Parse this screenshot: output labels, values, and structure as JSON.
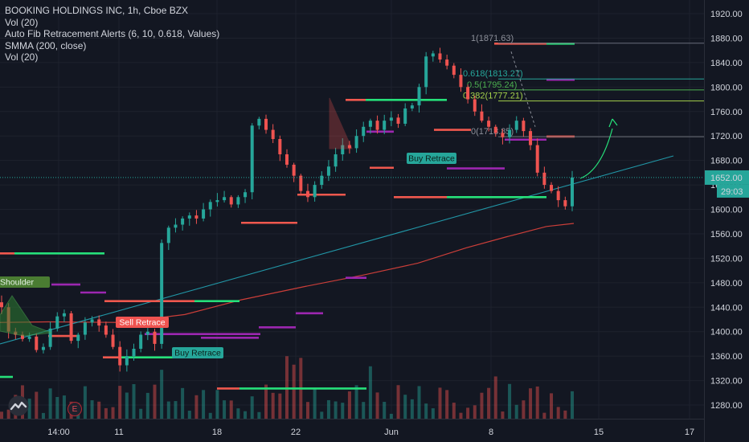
{
  "legend": {
    "title": "BOOKING HOLDINGS INC, 1h, Cboe BZX",
    "indicators": [
      "Vol (20)",
      "Auto Fib Retracement Alerts (6, 10, 0.618, Values)",
      "SMMA (200, close)",
      "Vol (20)"
    ]
  },
  "colors": {
    "background": "#131722",
    "up": "#26a69a",
    "down": "#ef5350",
    "green_line": "#26e07a",
    "red_line": "#f0584e",
    "purple_line": "#9c27b0",
    "trend": "#2196a6",
    "smma": "#e0433c"
  },
  "price_axis": {
    "ticks": [
      "1920.00",
      "1880.00",
      "1840.00",
      "1800.00",
      "1760.00",
      "1720.00",
      "1680.00",
      "1640.00",
      "1600.00",
      "1560.00",
      "1520.00",
      "1480.00",
      "1440.00",
      "1400.00",
      "1360.00",
      "1320.00",
      "1280.00"
    ]
  },
  "time_axis": {
    "ticks": [
      "14:00",
      "11",
      "18",
      "22",
      "Jun",
      "8",
      "15",
      "17"
    ]
  },
  "badges": {
    "current_price": "1652.00",
    "countdown": "29:03",
    "event": "E"
  },
  "fib_levels": [
    {
      "label": "1(1871.63)",
      "value": 1871.63,
      "color": "#8c8f99"
    },
    {
      "label": "0.618(1813.27)",
      "value": 1813.27,
      "color": "#26a69a"
    },
    {
      "label": "0.5(1795.24)",
      "value": 1795.24,
      "color": "#4caf50"
    },
    {
      "label": "0.382(1777.21)",
      "value": 1777.21,
      "color": "#a5d24c"
    },
    {
      "label": "0(1718.85)",
      "value": 1718.85,
      "color": "#8c8f99"
    }
  ],
  "pattern_labels": [
    {
      "text": "Shoulder",
      "bg": "#4a7c32",
      "fg": "#e8f5e9"
    },
    {
      "text": "Sell Retrace",
      "bg": "#ef5350",
      "fg": "#ffffff"
    },
    {
      "text": "Buy Retrace",
      "bg": "#26a69a",
      "fg": "#0b1f1a"
    },
    {
      "text": "Buy Retrace",
      "bg": "#26a69a",
      "fg": "#0b1f1a"
    }
  ],
  "chart_data": {
    "type": "candlestick",
    "symbol": "BOOKING HOLDINGS INC",
    "interval": "1h",
    "exchange": "Cboe BZX",
    "ylim": [
      1260,
      1935
    ],
    "last_price": 1652,
    "close_series": [
      1440,
      1400,
      1395,
      1388,
      1392,
      1370,
      1375,
      1405,
      1425,
      1430,
      1385,
      1395,
      1415,
      1420,
      1410,
      1395,
      1375,
      1345,
      1360,
      1372,
      1395,
      1400,
      1380,
      1545,
      1570,
      1575,
      1585,
      1590,
      1585,
      1600,
      1612,
      1615,
      1620,
      1608,
      1620,
      1628,
      1737,
      1748,
      1730,
      1715,
      1690,
      1673,
      1655,
      1630,
      1620,
      1640,
      1655,
      1670,
      1690,
      1705,
      1700,
      1720,
      1735,
      1745,
      1730,
      1745,
      1750,
      1740,
      1765,
      1770,
      1800,
      1850,
      1855,
      1845,
      1835,
      1820,
      1800,
      1780,
      1760,
      1745,
      1735,
      1725,
      1718,
      1730,
      1745,
      1728,
      1705,
      1660,
      1640,
      1630,
      1615,
      1605,
      1652
    ]
  }
}
